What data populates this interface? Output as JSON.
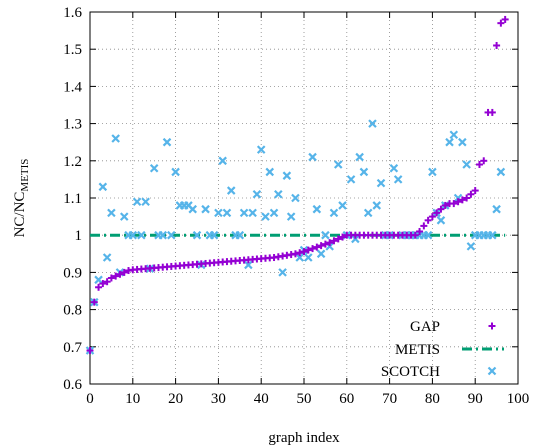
{
  "chart_data": {
    "type": "scatter",
    "xlabel": "graph index",
    "ylabel_main": "NC/NC",
    "ylabel_sub": "METIS",
    "xlim": [
      0,
      100
    ],
    "ylim": [
      0.6,
      1.6
    ],
    "xticks": [
      0,
      10,
      20,
      30,
      40,
      50,
      60,
      70,
      80,
      90,
      100
    ],
    "yticks": [
      0.6,
      0.7,
      0.8,
      0.9,
      1.0,
      1.1,
      1.2,
      1.3,
      1.4,
      1.5,
      1.6
    ],
    "xtick_labels": [
      "0",
      "10",
      "20",
      "30",
      "40",
      "50",
      "60",
      "70",
      "80",
      "90",
      "100"
    ],
    "ytick_labels": [
      "0.6",
      "0.7",
      "0.8",
      "0.9",
      "1",
      "1.1",
      "1.2",
      "1.3",
      "1.4",
      "1.5",
      "1.6"
    ],
    "grid": true,
    "legend_position": "bottom-right",
    "series": [
      {
        "name": "GAP",
        "marker": "plus",
        "color": "#9400d3",
        "points": [
          [
            0,
            0.69
          ],
          [
            1,
            0.82
          ],
          [
            2,
            0.86
          ],
          [
            3,
            0.87
          ],
          [
            4,
            0.875
          ],
          [
            5,
            0.885
          ],
          [
            6,
            0.89
          ],
          [
            7,
            0.895
          ],
          [
            8,
            0.9
          ],
          [
            9,
            0.905
          ],
          [
            10,
            0.907
          ],
          [
            11,
            0.908
          ],
          [
            12,
            0.909
          ],
          [
            13,
            0.91
          ],
          [
            14,
            0.911
          ],
          [
            15,
            0.912
          ],
          [
            16,
            0.913
          ],
          [
            17,
            0.914
          ],
          [
            18,
            0.915
          ],
          [
            19,
            0.916
          ],
          [
            20,
            0.917
          ],
          [
            21,
            0.918
          ],
          [
            22,
            0.919
          ],
          [
            23,
            0.92
          ],
          [
            24,
            0.921
          ],
          [
            25,
            0.922
          ],
          [
            26,
            0.923
          ],
          [
            27,
            0.924
          ],
          [
            28,
            0.925
          ],
          [
            29,
            0.926
          ],
          [
            30,
            0.927
          ],
          [
            31,
            0.928
          ],
          [
            32,
            0.929
          ],
          [
            33,
            0.93
          ],
          [
            34,
            0.931
          ],
          [
            35,
            0.932
          ],
          [
            36,
            0.933
          ],
          [
            37,
            0.934
          ],
          [
            38,
            0.935
          ],
          [
            39,
            0.936
          ],
          [
            40,
            0.937
          ],
          [
            41,
            0.938
          ],
          [
            42,
            0.939
          ],
          [
            43,
            0.94
          ],
          [
            44,
            0.942
          ],
          [
            45,
            0.944
          ],
          [
            46,
            0.946
          ],
          [
            47,
            0.948
          ],
          [
            48,
            0.95
          ],
          [
            49,
            0.953
          ],
          [
            50,
            0.956
          ],
          [
            51,
            0.96
          ],
          [
            52,
            0.964
          ],
          [
            53,
            0.968
          ],
          [
            54,
            0.972
          ],
          [
            55,
            0.976
          ],
          [
            56,
            0.98
          ],
          [
            57,
            0.985
          ],
          [
            58,
            0.99
          ],
          [
            59,
            0.995
          ],
          [
            60,
            1.0
          ],
          [
            61,
            1.0
          ],
          [
            62,
            1.0
          ],
          [
            63,
            1.0
          ],
          [
            64,
            1.0
          ],
          [
            65,
            1.0
          ],
          [
            66,
            1.0
          ],
          [
            67,
            1.0
          ],
          [
            68,
            1.0
          ],
          [
            69,
            1.0
          ],
          [
            70,
            1.0
          ],
          [
            71,
            1.0
          ],
          [
            72,
            1.0
          ],
          [
            73,
            1.0
          ],
          [
            74,
            1.0
          ],
          [
            75,
            1.0
          ],
          [
            76,
            1.0
          ],
          [
            77,
            1.01
          ],
          [
            78,
            1.025
          ],
          [
            79,
            1.04
          ],
          [
            80,
            1.05
          ],
          [
            81,
            1.06
          ],
          [
            82,
            1.07
          ],
          [
            83,
            1.08
          ],
          [
            84,
            1.085
          ],
          [
            85,
            1.085
          ],
          [
            86,
            1.09
          ],
          [
            87,
            1.095
          ],
          [
            88,
            1.1
          ],
          [
            89,
            1.11
          ],
          [
            90,
            1.12
          ],
          [
            91,
            1.19
          ],
          [
            92,
            1.2
          ],
          [
            93,
            1.33
          ],
          [
            94,
            1.33
          ],
          [
            95,
            1.51
          ],
          [
            96,
            1.57
          ],
          [
            97,
            1.58
          ]
        ]
      },
      {
        "name": "METIS",
        "marker": "dash-dot-line",
        "color": "#009e73",
        "value": 1.0,
        "xrange": [
          0,
          97
        ]
      },
      {
        "name": "SCOTCH",
        "marker": "x",
        "color": "#56b4e9",
        "points": [
          [
            0,
            0.69
          ],
          [
            1,
            0.82
          ],
          [
            2,
            0.88
          ],
          [
            3,
            1.13
          ],
          [
            4,
            0.94
          ],
          [
            5,
            1.06
          ],
          [
            6,
            1.26
          ],
          [
            7,
            0.9
          ],
          [
            8,
            1.05
          ],
          [
            9,
            1.0
          ],
          [
            10,
            1.0
          ],
          [
            11,
            1.09
          ],
          [
            12,
            1.0
          ],
          [
            13,
            1.09
          ],
          [
            14,
            0.91
          ],
          [
            15,
            1.18
          ],
          [
            16,
            1.0
          ],
          [
            17,
            1.0
          ],
          [
            18,
            1.25
          ],
          [
            19,
            1.0
          ],
          [
            20,
            1.17
          ],
          [
            21,
            1.08
          ],
          [
            22,
            1.08
          ],
          [
            23,
            1.08
          ],
          [
            24,
            1.07
          ],
          [
            25,
            1.0
          ],
          [
            26,
            0.92
          ],
          [
            27,
            1.07
          ],
          [
            28,
            1.0
          ],
          [
            29,
            1.0
          ],
          [
            30,
            1.06
          ],
          [
            31,
            1.2
          ],
          [
            32,
            1.06
          ],
          [
            33,
            1.12
          ],
          [
            34,
            1.0
          ],
          [
            35,
            1.0
          ],
          [
            36,
            1.06
          ],
          [
            37,
            0.92
          ],
          [
            38,
            1.06
          ],
          [
            39,
            1.11
          ],
          [
            40,
            1.23
          ],
          [
            41,
            1.05
          ],
          [
            42,
            1.17
          ],
          [
            43,
            1.06
          ],
          [
            44,
            1.11
          ],
          [
            45,
            0.9
          ],
          [
            46,
            1.16
          ],
          [
            47,
            1.05
          ],
          [
            48,
            1.1
          ],
          [
            49,
            0.94
          ],
          [
            50,
            0.96
          ],
          [
            51,
            0.94
          ],
          [
            52,
            1.21
          ],
          [
            53,
            1.07
          ],
          [
            54,
            0.95
          ],
          [
            55,
            1.0
          ],
          [
            56,
            0.97
          ],
          [
            57,
            1.06
          ],
          [
            58,
            1.19
          ],
          [
            59,
            1.08
          ],
          [
            60,
            1.0
          ],
          [
            61,
            1.15
          ],
          [
            62,
            0.99
          ],
          [
            63,
            1.21
          ],
          [
            64,
            1.17
          ],
          [
            65,
            1.06
          ],
          [
            66,
            1.3
          ],
          [
            67,
            1.08
          ],
          [
            68,
            1.14
          ],
          [
            69,
            1.0
          ],
          [
            70,
            1.0
          ],
          [
            71,
            1.18
          ],
          [
            72,
            1.15
          ],
          [
            73,
            1.0
          ],
          [
            74,
            1.0
          ],
          [
            75,
            1.0
          ],
          [
            76,
            1.0
          ],
          [
            77,
            1.0
          ],
          [
            78,
            1.0
          ],
          [
            79,
            1.0
          ],
          [
            80,
            1.17
          ],
          [
            81,
            1.06
          ],
          [
            82,
            1.04
          ],
          [
            83,
            1.08
          ],
          [
            84,
            1.25
          ],
          [
            85,
            1.27
          ],
          [
            86,
            1.1
          ],
          [
            87,
            1.25
          ],
          [
            88,
            1.19
          ],
          [
            89,
            0.97
          ],
          [
            90,
            1.0
          ],
          [
            91,
            1.0
          ],
          [
            92,
            1.0
          ],
          [
            93,
            1.0
          ],
          [
            94,
            1.0
          ],
          [
            95,
            1.07
          ],
          [
            96,
            1.17
          ]
        ]
      }
    ]
  }
}
